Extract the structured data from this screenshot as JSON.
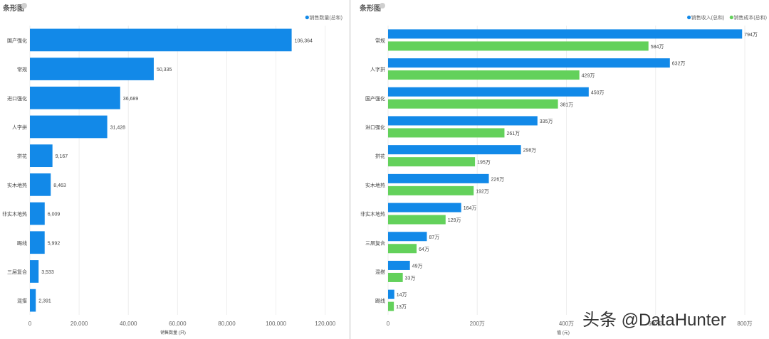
{
  "watermark": "头条 @DataHunter",
  "colors": {
    "blue": "#1289e8",
    "green": "#63d15b",
    "grid": "#eeeeee",
    "axis": "#666666"
  },
  "chart_data": [
    {
      "type": "bar",
      "orientation": "horizontal",
      "title": "条形图",
      "xlabel": "销售数量 (只)",
      "series": [
        {
          "name": "销售数量(总和)",
          "color": "#1289e8",
          "values": [
            106364,
            50335,
            36689,
            31428,
            9167,
            8463,
            6009,
            5992,
            3533,
            2391
          ],
          "labels": [
            "106,364",
            "50,335",
            "36,689",
            "31,428",
            "9,167",
            "8,463",
            "6,009",
            "5,992",
            "3,533",
            "2,391"
          ]
        }
      ],
      "categories": [
        "国产强化",
        "常规",
        "进口强化",
        "人字拼",
        "拼花",
        "实木地热",
        "非实木地热",
        "踢线",
        "三层复合",
        "混搭"
      ],
      "xlim": [
        0,
        125000
      ],
      "ticks": [
        0,
        20000,
        40000,
        60000,
        80000,
        100000,
        120000
      ],
      "tick_labels": [
        "0",
        "20,000",
        "40,000",
        "60,000",
        "80,000",
        "100,000",
        "120,000"
      ]
    },
    {
      "type": "bar",
      "orientation": "horizontal",
      "title": "条形图",
      "xlabel": "值 (元)",
      "series": [
        {
          "name": "销售收入(总和)",
          "color": "#1289e8",
          "values": [
            794,
            632,
            450,
            335,
            298,
            226,
            164,
            87,
            49,
            14
          ],
          "labels": [
            "794万",
            "632万",
            "450万",
            "335万",
            "298万",
            "226万",
            "164万",
            "87万",
            "49万",
            "14万"
          ]
        },
        {
          "name": "销售成本(总和)",
          "color": "#63d15b",
          "values": [
            584,
            429,
            381,
            261,
            195,
            192,
            129,
            64,
            33,
            13
          ],
          "labels": [
            "584万",
            "429万",
            "381万",
            "261万",
            "195万",
            "192万",
            "129万",
            "64万",
            "33万",
            "13万"
          ]
        }
      ],
      "categories": [
        "常规",
        "人字拼",
        "国产强化",
        "进口强化",
        "拼花",
        "实木地热",
        "非实木地热",
        "三层复合",
        "混搭",
        "踢线"
      ],
      "xlim": [
        0,
        800
      ],
      "ticks": [
        0,
        200,
        400,
        600,
        800
      ],
      "tick_labels": [
        "0",
        "200万",
        "400万",
        "600万",
        "800万"
      ]
    }
  ]
}
